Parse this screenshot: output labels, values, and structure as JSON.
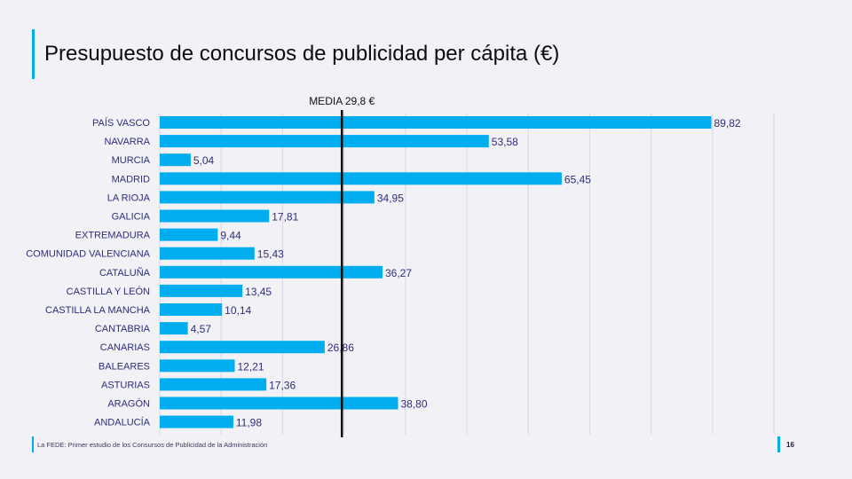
{
  "slide": {
    "title": "Presupuesto de concursos de publicidad per cápita (€)",
    "footer": "La FEDE: Primer estudio de los Consursos de Publicidad de la Administración",
    "page_number": "16"
  },
  "colors": {
    "accent": "#00aeef",
    "bar": "#00aeef",
    "category_text": "#2e2d7a",
    "value_text": "#2e2d7a",
    "mean_line": "#0d0d0d"
  },
  "chart_data": {
    "type": "bar",
    "orientation": "horizontal",
    "categories": [
      "PAÍS VASCO",
      "NAVARRA",
      "MURCIA",
      "MADRID",
      "LA RIOJA",
      "GALICIA",
      "EXTREMADURA",
      "COMUNIDAD VALENCIANA",
      "CATALUÑA",
      "CASTILLA Y LEÓN",
      "CASTILLA LA MANCHA",
      "CANTABRIA",
      "CANARIAS",
      "BALEARES",
      "ASTURIAS",
      "ARAGÓN",
      "ANDALUCÍA"
    ],
    "values": [
      89.82,
      53.58,
      5.04,
      65.45,
      34.95,
      17.81,
      9.44,
      15.43,
      36.27,
      13.45,
      10.14,
      4.57,
      26.86,
      12.21,
      17.36,
      38.8,
      11.98
    ],
    "value_labels": [
      "89,82",
      "53,58",
      "5,04",
      "65,45",
      "34,95",
      "17,81",
      "9,44",
      "15,43",
      "36,27",
      "13,45",
      "10,14",
      "4,57",
      "26,86",
      "12,21",
      "17,36",
      "38,80",
      "11,98"
    ],
    "xlim": [
      0,
      100
    ],
    "grid": true,
    "reference_line": {
      "label": "MEDIA 29,8 €",
      "value": 29.8
    }
  }
}
